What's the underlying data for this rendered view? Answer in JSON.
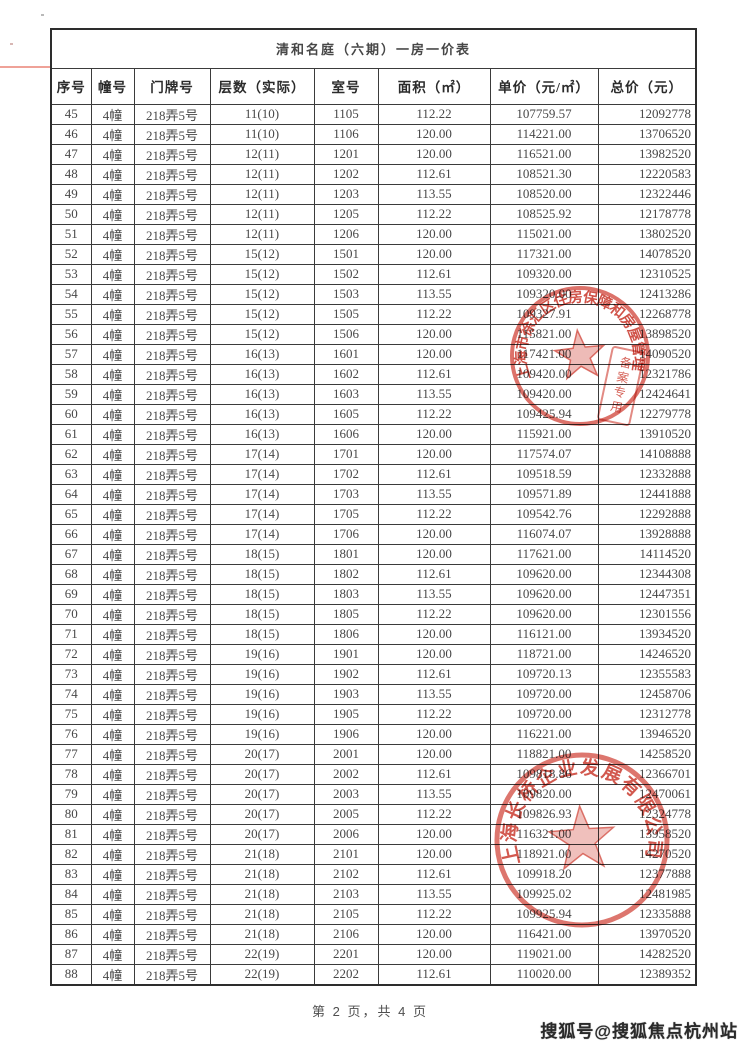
{
  "page": {
    "title": "清和名庭（六期）一房一价表",
    "page_footer": "第 2 页，共 4 页",
    "watermark": "搜狐号@搜狐焦点杭州站"
  },
  "table": {
    "headers": [
      "序号",
      "幢号",
      "门牌号",
      "层数（实际）",
      "室号",
      "面积（㎡）",
      "单价（元/㎡）",
      "总价（元）"
    ],
    "column_keys": [
      "index",
      "building",
      "door_no",
      "floor",
      "room",
      "area",
      "unit_price",
      "total_price"
    ],
    "rows": [
      [
        "45",
        "4幢",
        "218弄5号",
        "11(10)",
        "1105",
        "112.22",
        "107759.57",
        "12092778"
      ],
      [
        "46",
        "4幢",
        "218弄5号",
        "11(10)",
        "1106",
        "120.00",
        "114221.00",
        "13706520"
      ],
      [
        "47",
        "4幢",
        "218弄5号",
        "12(11)",
        "1201",
        "120.00",
        "116521.00",
        "13982520"
      ],
      [
        "48",
        "4幢",
        "218弄5号",
        "12(11)",
        "1202",
        "112.61",
        "108521.30",
        "12220583"
      ],
      [
        "49",
        "4幢",
        "218弄5号",
        "12(11)",
        "1203",
        "113.55",
        "108520.00",
        "12322446"
      ],
      [
        "50",
        "4幢",
        "218弄5号",
        "12(11)",
        "1205",
        "112.22",
        "108525.92",
        "12178778"
      ],
      [
        "51",
        "4幢",
        "218弄5号",
        "12(11)",
        "1206",
        "120.00",
        "115021.00",
        "13802520"
      ],
      [
        "52",
        "4幢",
        "218弄5号",
        "15(12)",
        "1501",
        "120.00",
        "117321.00",
        "14078520"
      ],
      [
        "53",
        "4幢",
        "218弄5号",
        "15(12)",
        "1502",
        "112.61",
        "109320.00",
        "12310525"
      ],
      [
        "54",
        "4幢",
        "218弄5号",
        "15(12)",
        "1503",
        "113.55",
        "109320.00",
        "12413286"
      ],
      [
        "55",
        "4幢",
        "218弄5号",
        "15(12)",
        "1505",
        "112.22",
        "109327.91",
        "12268778"
      ],
      [
        "56",
        "4幢",
        "218弄5号",
        "15(12)",
        "1506",
        "120.00",
        "115821.00",
        "13898520"
      ],
      [
        "57",
        "4幢",
        "218弄5号",
        "16(13)",
        "1601",
        "120.00",
        "117421.00",
        "14090520"
      ],
      [
        "58",
        "4幢",
        "218弄5号",
        "16(13)",
        "1602",
        "112.61",
        "109420.00",
        "12321786"
      ],
      [
        "59",
        "4幢",
        "218弄5号",
        "16(13)",
        "1603",
        "113.55",
        "109420.00",
        "12424641"
      ],
      [
        "60",
        "4幢",
        "218弄5号",
        "16(13)",
        "1605",
        "112.22",
        "109425.94",
        "12279778"
      ],
      [
        "61",
        "4幢",
        "218弄5号",
        "16(13)",
        "1606",
        "120.00",
        "115921.00",
        "13910520"
      ],
      [
        "62",
        "4幢",
        "218弄5号",
        "17(14)",
        "1701",
        "120.00",
        "117574.07",
        "14108888"
      ],
      [
        "63",
        "4幢",
        "218弄5号",
        "17(14)",
        "1702",
        "112.61",
        "109518.59",
        "12332888"
      ],
      [
        "64",
        "4幢",
        "218弄5号",
        "17(14)",
        "1703",
        "113.55",
        "109571.89",
        "12441888"
      ],
      [
        "65",
        "4幢",
        "218弄5号",
        "17(14)",
        "1705",
        "112.22",
        "109542.76",
        "12292888"
      ],
      [
        "66",
        "4幢",
        "218弄5号",
        "17(14)",
        "1706",
        "120.00",
        "116074.07",
        "13928888"
      ],
      [
        "67",
        "4幢",
        "218弄5号",
        "18(15)",
        "1801",
        "120.00",
        "117621.00",
        "14114520"
      ],
      [
        "68",
        "4幢",
        "218弄5号",
        "18(15)",
        "1802",
        "112.61",
        "109620.00",
        "12344308"
      ],
      [
        "69",
        "4幢",
        "218弄5号",
        "18(15)",
        "1803",
        "113.55",
        "109620.00",
        "12447351"
      ],
      [
        "70",
        "4幢",
        "218弄5号",
        "18(15)",
        "1805",
        "112.22",
        "109620.00",
        "12301556"
      ],
      [
        "71",
        "4幢",
        "218弄5号",
        "18(15)",
        "1806",
        "120.00",
        "116121.00",
        "13934520"
      ],
      [
        "72",
        "4幢",
        "218弄5号",
        "19(16)",
        "1901",
        "120.00",
        "118721.00",
        "14246520"
      ],
      [
        "73",
        "4幢",
        "218弄5号",
        "19(16)",
        "1902",
        "112.61",
        "109720.13",
        "12355583"
      ],
      [
        "74",
        "4幢",
        "218弄5号",
        "19(16)",
        "1903",
        "113.55",
        "109720.00",
        "12458706"
      ],
      [
        "75",
        "4幢",
        "218弄5号",
        "19(16)",
        "1905",
        "112.22",
        "109720.00",
        "12312778"
      ],
      [
        "76",
        "4幢",
        "218弄5号",
        "19(16)",
        "1906",
        "120.00",
        "116221.00",
        "13946520"
      ],
      [
        "77",
        "4幢",
        "218弄5号",
        "20(17)",
        "2001",
        "120.00",
        "118821.00",
        "14258520"
      ],
      [
        "78",
        "4幢",
        "218弄5号",
        "20(17)",
        "2002",
        "112.61",
        "109818.86",
        "12366701"
      ],
      [
        "79",
        "4幢",
        "218弄5号",
        "20(17)",
        "2003",
        "113.55",
        "109820.00",
        "12470061"
      ],
      [
        "80",
        "4幢",
        "218弄5号",
        "20(17)",
        "2005",
        "112.22",
        "109826.93",
        "12324778"
      ],
      [
        "81",
        "4幢",
        "218弄5号",
        "20(17)",
        "2006",
        "120.00",
        "116321.00",
        "13958520"
      ],
      [
        "82",
        "4幢",
        "218弄5号",
        "21(18)",
        "2101",
        "120.00",
        "118921.00",
        "14270520"
      ],
      [
        "83",
        "4幢",
        "218弄5号",
        "21(18)",
        "2102",
        "112.61",
        "109918.20",
        "12377888"
      ],
      [
        "84",
        "4幢",
        "218弄5号",
        "21(18)",
        "2103",
        "113.55",
        "109925.02",
        "12481985"
      ],
      [
        "85",
        "4幢",
        "218弄5号",
        "21(18)",
        "2105",
        "112.22",
        "109925.94",
        "12335888"
      ],
      [
        "86",
        "4幢",
        "218弄5号",
        "21(18)",
        "2106",
        "120.00",
        "116421.00",
        "13970520"
      ],
      [
        "87",
        "4幢",
        "218弄5号",
        "22(19)",
        "2201",
        "120.00",
        "119021.00",
        "14282520"
      ],
      [
        "88",
        "4幢",
        "218弄5号",
        "22(19)",
        "2202",
        "112.61",
        "110020.00",
        "12389352"
      ]
    ]
  },
  "stamps": [
    {
      "type": "circle-seal",
      "text": "上海市徐汇区住房保障和房屋管理局"
    },
    {
      "type": "circle-seal",
      "text": "上海长桥企业发展有限公司"
    },
    {
      "type": "rect-seal",
      "text": "备案专用"
    }
  ],
  "colors": {
    "stamp_red": "#cf3c30",
    "table_border": "#3b3b3b",
    "text": "#474747"
  }
}
